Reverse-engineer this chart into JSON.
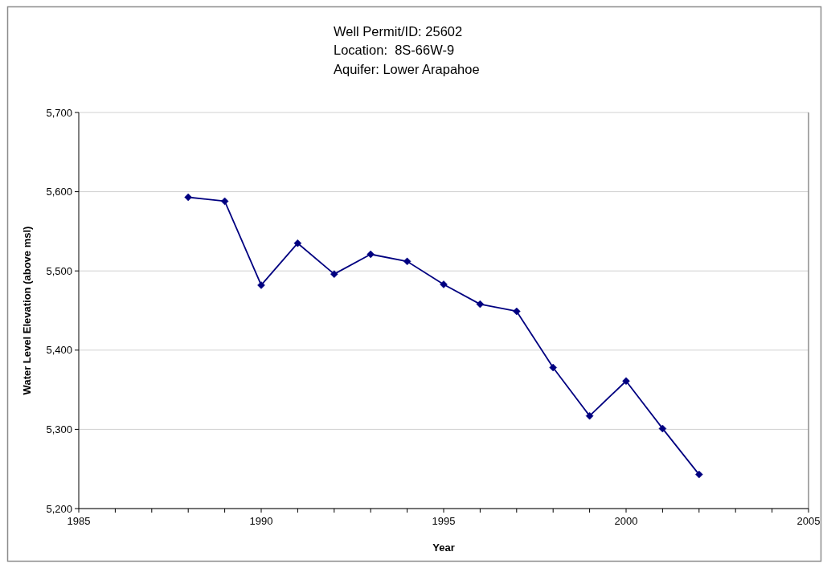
{
  "chart_data": {
    "type": "line",
    "title": "Well Permit/ID: 25602\nLocation:  8S-66W-9\nAquifer: Lower Arapahoe",
    "xlabel": "Year",
    "ylabel": "Water Level Elevation (above msl)",
    "x": [
      1988,
      1989,
      1990,
      1991,
      1992,
      1993,
      1994,
      1995,
      1996,
      1997,
      1998,
      1999,
      2000,
      2001,
      2002
    ],
    "series": [
      {
        "color": "#000080",
        "values": [
          5593,
          5588,
          5482,
          5535,
          5496,
          5521,
          5512,
          5483,
          5458,
          5449,
          5378,
          5317,
          5361,
          5301,
          5243
        ]
      }
    ],
    "xlim": [
      1985,
      2005
    ],
    "xticks": [
      1985,
      {
        "value": 1986,
        "label": null
      },
      {
        "value": 1987,
        "label": null
      },
      {
        "value": 1988,
        "label": null
      },
      {
        "value": 1989,
        "label": null
      },
      1990,
      {
        "value": 1991,
        "label": null
      },
      {
        "value": 1992,
        "label": null
      },
      {
        "value": 1993,
        "label": null
      },
      {
        "value": 1994,
        "label": null
      },
      1995,
      {
        "value": 1996,
        "label": null
      },
      {
        "value": 1997,
        "label": null
      },
      {
        "value": 1998,
        "label": null
      },
      {
        "value": 1999,
        "label": null
      },
      2000,
      {
        "value": 2001,
        "label": null
      },
      {
        "value": 2002,
        "label": null
      },
      {
        "value": 2003,
        "label": null
      },
      {
        "value": 2004,
        "label": null
      },
      2005
    ],
    "ylim": [
      5200,
      5700
    ],
    "yticks": [
      {
        "value": 5200,
        "label": "5,200"
      },
      {
        "value": 5300,
        "label": "5,300"
      },
      {
        "value": 5400,
        "label": "5,400"
      },
      {
        "value": 5500,
        "label": "5,500"
      },
      {
        "value": 5600,
        "label": "5,600"
      },
      {
        "value": 5700,
        "label": "5,700"
      }
    ],
    "grid": "y",
    "marker": "diamond",
    "line_style": "solid"
  }
}
